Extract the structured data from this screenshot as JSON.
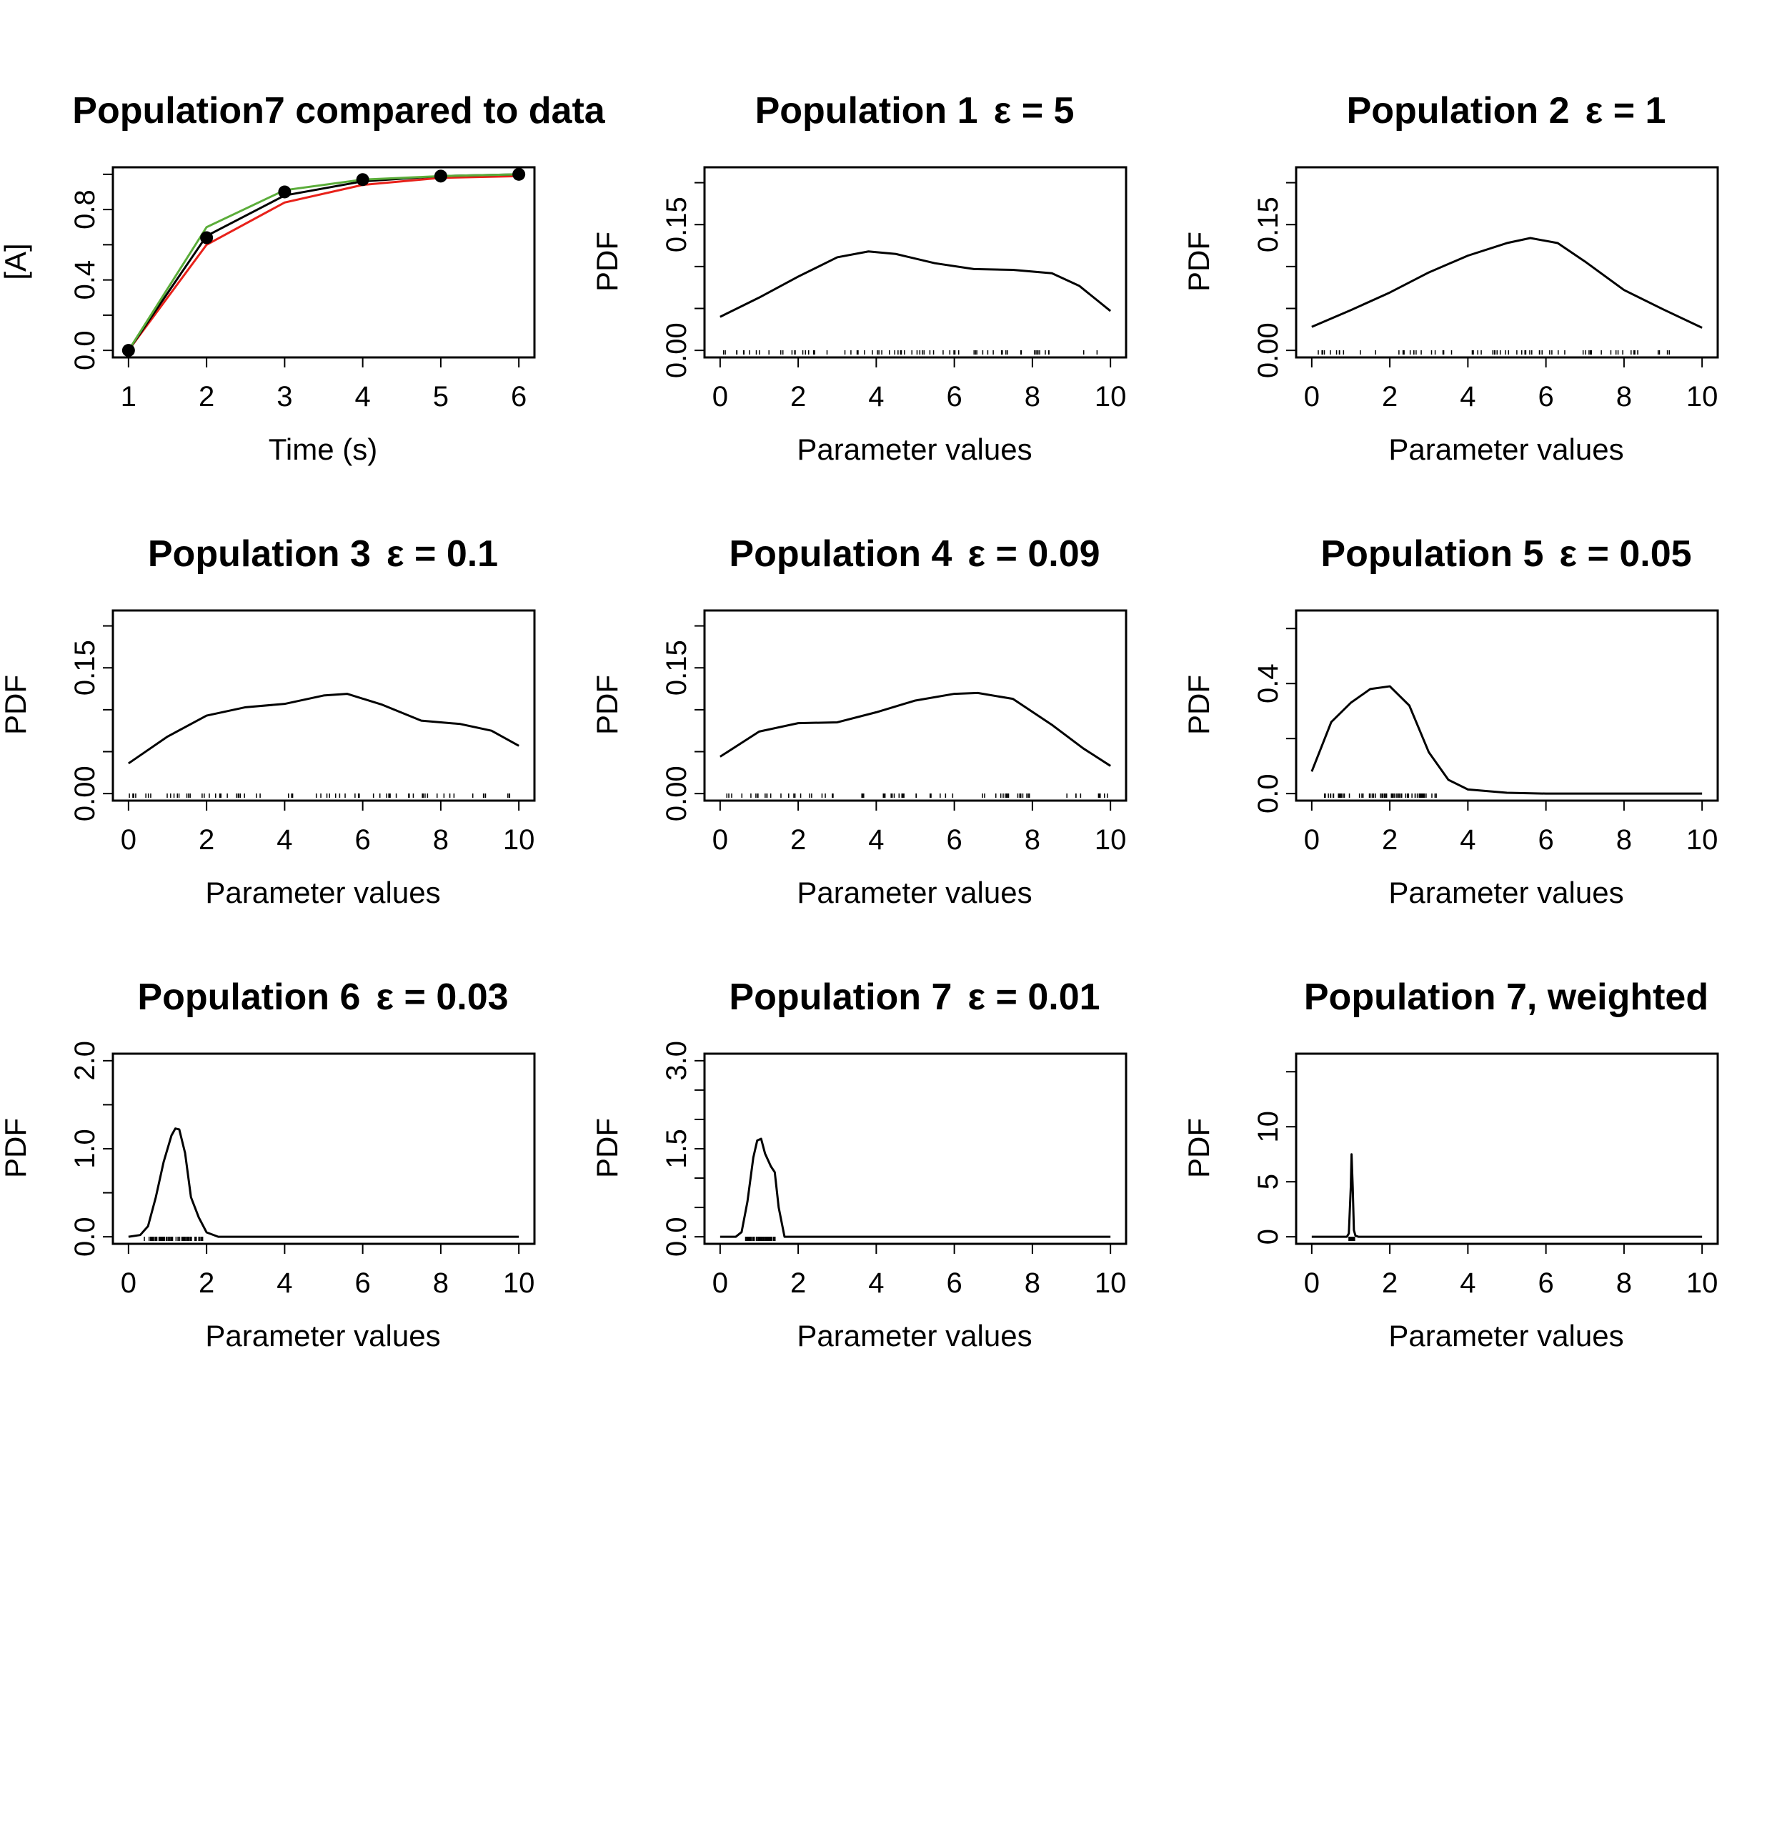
{
  "chart_data": [
    {
      "type": "line",
      "title": "Population7 compared to data",
      "xlabel": "Time (s)",
      "ylabel": "[A]",
      "xlim": [
        0.8,
        6.2
      ],
      "ylim": [
        -0.04,
        1.04
      ],
      "x_ticks": [
        "1",
        "2",
        "3",
        "4",
        "5",
        "6"
      ],
      "y_ticks": [
        "0.0",
        "0.4",
        "0.8"
      ],
      "y_tick_values": [
        0,
        0.4,
        0.8
      ],
      "y_minor_ticks": [
        0.2,
        0.6,
        1.0
      ],
      "x": [
        1,
        2,
        3,
        4,
        5,
        6
      ],
      "series": [
        {
          "values": [
            0.0,
            0.6,
            0.84,
            0.94,
            0.98,
            0.99
          ],
          "color": "#e8211a"
        },
        {
          "values": [
            0.0,
            0.65,
            0.88,
            0.96,
            0.99,
            1.0
          ],
          "color": "#000000"
        },
        {
          "values": [
            0.0,
            0.7,
            0.91,
            0.97,
            0.99,
            1.0
          ],
          "color": "#5bad3a"
        }
      ],
      "points": [
        0.0,
        0.64,
        0.9,
        0.97,
        0.99,
        1.0
      ],
      "grid": false
    },
    {
      "type": "line",
      "title": "Population 1",
      "epsilon": "ε = 5",
      "xlabel": "Parameter values",
      "ylabel": "PDF",
      "xlim": [
        -0.4,
        10.4
      ],
      "ylim": [
        -0.0084,
        0.2184
      ],
      "x_ticks": [
        "0",
        "2",
        "4",
        "6",
        "8",
        "10"
      ],
      "y_ticks": [
        "0.00",
        "0.15"
      ],
      "y_tick_values": [
        0,
        0.15
      ],
      "y_minor_ticks": [
        0.05,
        0.1,
        0.2
      ],
      "x": [
        0,
        1,
        2,
        3,
        3.8,
        4.5,
        5.5,
        6.5,
        7.5,
        8.5,
        9.2,
        10
      ],
      "values": [
        0.04,
        0.063,
        0.088,
        0.111,
        0.118,
        0.115,
        0.104,
        0.097,
        0.096,
        0.092,
        0.077,
        0.047
      ],
      "rug_range": [
        0,
        10
      ],
      "grid": false
    },
    {
      "type": "line",
      "title": "Population 2",
      "epsilon": "ε = 1",
      "xlabel": "Parameter values",
      "ylabel": "PDF",
      "xlim": [
        -0.4,
        10.4
      ],
      "ylim": [
        -0.0084,
        0.2184
      ],
      "x_ticks": [
        "0",
        "2",
        "4",
        "6",
        "8",
        "10"
      ],
      "y_ticks": [
        "0.00",
        "0.15"
      ],
      "y_tick_values": [
        0,
        0.15
      ],
      "y_minor_ticks": [
        0.05,
        0.1,
        0.2
      ],
      "x": [
        0,
        1,
        2,
        3,
        4,
        5,
        5.6,
        6.3,
        7,
        8,
        9,
        10
      ],
      "values": [
        0.028,
        0.048,
        0.069,
        0.093,
        0.113,
        0.128,
        0.134,
        0.128,
        0.106,
        0.072,
        0.049,
        0.027
      ],
      "rug_range": [
        0,
        10
      ],
      "grid": false
    },
    {
      "type": "line",
      "title": "Population 3",
      "epsilon": "ε = 0.1",
      "xlabel": "Parameter values",
      "ylabel": "PDF",
      "xlim": [
        -0.4,
        10.4
      ],
      "ylim": [
        -0.0084,
        0.2184
      ],
      "x_ticks": [
        "0",
        "2",
        "4",
        "6",
        "8",
        "10"
      ],
      "y_ticks": [
        "0.00",
        "0.15"
      ],
      "y_tick_values": [
        0,
        0.15
      ],
      "y_minor_ticks": [
        0.05,
        0.1,
        0.2
      ],
      "x": [
        0,
        1,
        2,
        3,
        4,
        5,
        5.6,
        6.5,
        7.5,
        8.5,
        9.3,
        10
      ],
      "values": [
        0.036,
        0.068,
        0.093,
        0.103,
        0.107,
        0.117,
        0.119,
        0.106,
        0.087,
        0.083,
        0.075,
        0.057
      ],
      "rug_range": [
        0,
        10
      ],
      "grid": false
    },
    {
      "type": "line",
      "title": "Population 4",
      "epsilon": "ε = 0.09",
      "xlabel": "Parameter values",
      "ylabel": "PDF",
      "xlim": [
        -0.4,
        10.4
      ],
      "ylim": [
        -0.0084,
        0.2184
      ],
      "x_ticks": [
        "0",
        "2",
        "4",
        "6",
        "8",
        "10"
      ],
      "y_ticks": [
        "0.00",
        "0.15"
      ],
      "y_tick_values": [
        0,
        0.15
      ],
      "y_minor_ticks": [
        0.05,
        0.1,
        0.2
      ],
      "x": [
        0,
        1,
        2,
        3,
        4,
        5,
        6,
        6.6,
        7.5,
        8.5,
        9.3,
        10
      ],
      "values": [
        0.044,
        0.074,
        0.084,
        0.085,
        0.097,
        0.111,
        0.119,
        0.12,
        0.113,
        0.082,
        0.054,
        0.033
      ],
      "rug_range": [
        0,
        10
      ],
      "grid": false
    },
    {
      "type": "line",
      "title": "Population 5",
      "epsilon": "ε = 0.05",
      "xlabel": "Parameter values",
      "ylabel": "PDF",
      "xlim": [
        -0.4,
        10.4
      ],
      "ylim": [
        -0.0256,
        0.6656
      ],
      "x_ticks": [
        "0",
        "2",
        "4",
        "6",
        "8",
        "10"
      ],
      "y_ticks": [
        "0.0",
        "0.4"
      ],
      "y_tick_values": [
        0,
        0.4
      ],
      "y_minor_ticks": [
        0.2,
        0.6
      ],
      "x": [
        0,
        0.5,
        1,
        1.5,
        2,
        2.5,
        3,
        3.5,
        4,
        5,
        6,
        8,
        10
      ],
      "values": [
        0.08,
        0.26,
        0.33,
        0.38,
        0.39,
        0.32,
        0.15,
        0.05,
        0.015,
        0.003,
        0.0,
        0.0,
        0.0
      ],
      "rug_range": [
        0.2,
        3.2
      ],
      "grid": false
    },
    {
      "type": "line",
      "title": "Population 6",
      "epsilon": "ε = 0.03",
      "xlabel": "Parameter values",
      "ylabel": "PDF",
      "xlim": [
        -0.4,
        10.4
      ],
      "ylim": [
        -0.08,
        2.08
      ],
      "x_ticks": [
        "0",
        "2",
        "4",
        "6",
        "8",
        "10"
      ],
      "y_ticks": [
        "0.0",
        "1.0",
        "2.0"
      ],
      "y_tick_values": [
        0,
        1.0,
        2.0
      ],
      "y_minor_ticks": [
        0.5,
        1.5
      ],
      "x": [
        0,
        0.3,
        0.5,
        0.7,
        0.9,
        1.1,
        1.2,
        1.3,
        1.45,
        1.6,
        1.8,
        2.0,
        2.3,
        4,
        6,
        8,
        10
      ],
      "values": [
        0.0,
        0.02,
        0.12,
        0.45,
        0.85,
        1.15,
        1.23,
        1.22,
        0.95,
        0.45,
        0.22,
        0.05,
        0.0,
        0.0,
        0.0,
        0.0,
        0.0
      ],
      "rug_range": [
        0.4,
        1.9
      ],
      "grid": false
    },
    {
      "type": "line",
      "title": "Population 7",
      "epsilon": "ε = 0.01",
      "xlabel": "Parameter values",
      "ylabel": "PDF",
      "xlim": [
        -0.4,
        10.4
      ],
      "ylim": [
        -0.12,
        3.12
      ],
      "x_ticks": [
        "0",
        "2",
        "4",
        "6",
        "8",
        "10"
      ],
      "y_ticks": [
        "0.0",
        "1.5",
        "3.0"
      ],
      "y_tick_values": [
        0,
        1.5,
        3.0
      ],
      "y_minor_ticks": [
        0.5,
        1.0,
        2.0,
        2.5
      ],
      "x": [
        0,
        0.4,
        0.55,
        0.7,
        0.85,
        0.95,
        1.05,
        1.15,
        1.3,
        1.4,
        1.5,
        1.65,
        2,
        4,
        6,
        8,
        10
      ],
      "values": [
        0.0,
        0.0,
        0.08,
        0.6,
        1.35,
        1.64,
        1.67,
        1.42,
        1.2,
        1.1,
        0.5,
        0.0,
        0.0,
        0.0,
        0.0,
        0.0,
        0.0
      ],
      "rug_range": [
        0.65,
        1.45
      ],
      "grid": false
    },
    {
      "type": "line",
      "title": "Population 7, weighted",
      "xlabel": "Parameter values",
      "ylabel": "PDF",
      "xlim": [
        -0.4,
        10.4
      ],
      "ylim": [
        -0.64,
        16.64
      ],
      "x_ticks": [
        "0",
        "2",
        "4",
        "6",
        "8",
        "10"
      ],
      "y_ticks": [
        "0",
        "5",
        "10"
      ],
      "y_tick_values": [
        0,
        5,
        10
      ],
      "y_minor_ticks": [
        15
      ],
      "x": [
        0,
        0.9,
        0.95,
        1.0,
        1.02,
        1.05,
        1.08,
        1.12,
        1.2,
        2,
        4,
        6,
        8,
        10
      ],
      "values": [
        0.0,
        0.0,
        0.3,
        4.5,
        7.5,
        4.5,
        0.6,
        0.1,
        0.0,
        0.0,
        0.0,
        0.0,
        0.0,
        0.0
      ],
      "rug_range": [
        0.95,
        1.1
      ],
      "grid": false
    }
  ]
}
